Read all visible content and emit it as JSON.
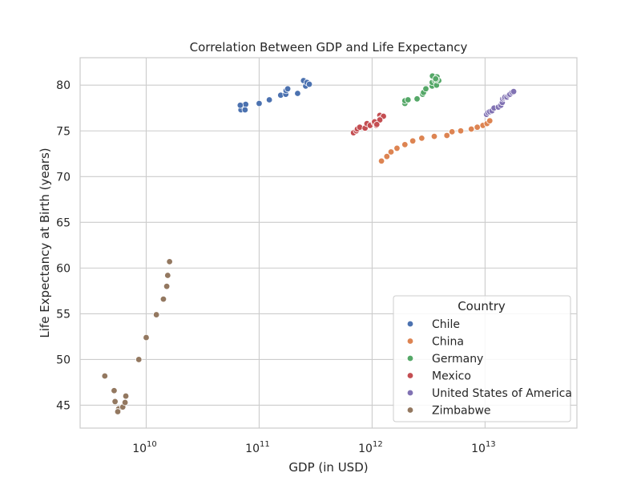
{
  "chart_data": {
    "type": "scatter",
    "title": "Correlation Between GDP and Life Expectancy",
    "xlabel": "GDP (in USD)",
    "ylabel": "Life Expectancy at Birth (years)",
    "x_scale": "log",
    "xlim": [
      2600000000.0,
      65000000000000.0
    ],
    "ylim": [
      42.5,
      83
    ],
    "x_ticks": [
      {
        "value": 10000000000.0,
        "base": "10",
        "exp": "10"
      },
      {
        "value": 100000000000.0,
        "base": "10",
        "exp": "11"
      },
      {
        "value": 1000000000000.0,
        "base": "10",
        "exp": "12"
      },
      {
        "value": 10000000000000.0,
        "base": "10",
        "exp": "13"
      }
    ],
    "y_ticks": [
      45,
      50,
      55,
      60,
      65,
      70,
      75,
      80
    ],
    "grid": true,
    "legend": {
      "title": "Country",
      "placement": "lower-right"
    },
    "series": [
      {
        "name": "Chile",
        "color": "#4c72b0",
        "points": [
          [
            69000000000.0,
            77.3
          ],
          [
            71000000000.0,
            77.8
          ],
          [
            76000000000.0,
            77.9
          ],
          [
            75000000000.0,
            77.3
          ],
          [
            68000000000.0,
            77.8
          ],
          [
            100000000000.0,
            78.0
          ],
          [
            123000000000.0,
            78.4
          ],
          [
            155000000000.0,
            78.9
          ],
          [
            172000000000.0,
            79.0
          ],
          [
            173000000000.0,
            79.4
          ],
          [
            179000000000.0,
            79.6
          ],
          [
            219000000000.0,
            79.1
          ],
          [
            247000000000.0,
            80.5
          ],
          [
            258000000000.0,
            79.9
          ],
          [
            265000000000.0,
            80.3
          ],
          [
            278000000000.0,
            80.1
          ]
        ]
      },
      {
        "name": "China",
        "color": "#dd8452",
        "points": [
          [
            1210000000000.0,
            71.7
          ],
          [
            1350000000000.0,
            72.2
          ],
          [
            1470000000000.0,
            72.7
          ],
          [
            1660000000000.0,
            73.1
          ],
          [
            1950000000000.0,
            73.5
          ],
          [
            2290000000000.0,
            73.9
          ],
          [
            2750000000000.0,
            74.2
          ],
          [
            3550000000000.0,
            74.4
          ],
          [
            4590000000000.0,
            74.5
          ],
          [
            5100000000000.0,
            74.9
          ],
          [
            6090000000000.0,
            75.0
          ],
          [
            7550000000000.0,
            75.2
          ],
          [
            8530000000000.0,
            75.4
          ],
          [
            9570000000000.0,
            75.6
          ],
          [
            10400000000000.0,
            75.8
          ],
          [
            11000000000000.0,
            76.1
          ]
        ]
      },
      {
        "name": "Germany",
        "color": "#55a868",
        "points": [
          [
            1950000000000.0,
            78.0
          ],
          [
            1950000000000.0,
            78.3
          ],
          [
            2080000000000.0,
            78.4
          ],
          [
            2500000000000.0,
            78.5
          ],
          [
            2800000000000.0,
            79.0
          ],
          [
            2850000000000.0,
            79.2
          ],
          [
            2990000000000.0,
            79.6
          ],
          [
            3400000000000.0,
            79.9
          ],
          [
            3400000000000.0,
            80.3
          ],
          [
            3420000000000.0,
            81.0
          ],
          [
            3600000000000.0,
            80.5
          ],
          [
            3720000000000.0,
            80.0
          ],
          [
            3760000000000.0,
            80.9
          ],
          [
            3890000000000.0,
            80.5
          ],
          [
            3700000000000.0,
            80.6
          ],
          [
            3650000000000.0,
            80.7
          ]
        ]
      },
      {
        "name": "Mexico",
        "color": "#c44e52",
        "points": [
          [
            684000000000.0,
            74.8
          ],
          [
            725000000000.0,
            75.0
          ],
          [
            740000000000.0,
            75.2
          ],
          [
            777000000000.0,
            75.4
          ],
          [
            866000000000.0,
            75.3
          ],
          [
            967000000000.0,
            75.7
          ],
          [
            900000000000.0,
            75.8
          ],
          [
            960000000000.0,
            75.6
          ],
          [
            1040000000000.0,
            75.9
          ],
          [
            1090000000000.0,
            75.6
          ],
          [
            1050000000000.0,
            76.0
          ],
          [
            1170000000000.0,
            76.7
          ],
          [
            1180000000000.0,
            76.3
          ],
          [
            1260000000000.0,
            76.6
          ],
          [
            1170000000000.0,
            76.2
          ],
          [
            1100000000000.0,
            75.7
          ]
        ]
      },
      {
        "name": "United States of America",
        "color": "#8172b3",
        "points": [
          [
            10300000000000.0,
            76.8
          ],
          [
            10600000000000.0,
            77.0
          ],
          [
            11000000000000.0,
            77.1
          ],
          [
            11500000000000.0,
            77.2
          ],
          [
            12000000000000.0,
            77.5
          ],
          [
            13100000000000.0,
            77.6
          ],
          [
            13800000000000.0,
            77.8
          ],
          [
            14200000000000.0,
            78.1
          ],
          [
            14300000000000.0,
            78.5
          ],
          [
            14700000000000.0,
            78.6
          ],
          [
            15000000000000.0,
            78.7
          ],
          [
            15600000000000.0,
            78.7
          ],
          [
            16200000000000.0,
            78.9
          ],
          [
            16600000000000.0,
            79.0
          ],
          [
            17300000000000.0,
            79.2
          ],
          [
            17900000000000.0,
            79.3
          ]
        ]
      },
      {
        "name": "Zimbabwe",
        "color": "#937860",
        "points": [
          [
            4300000000.0,
            48.2
          ],
          [
            5200000000.0,
            46.6
          ],
          [
            5300000000.0,
            45.4
          ],
          [
            5700000000.0,
            44.6
          ],
          [
            5600000000.0,
            44.3
          ],
          [
            6200000000.0,
            44.8
          ],
          [
            6600000000.0,
            46.0
          ],
          [
            6500000000.0,
            45.3
          ],
          [
            8600000000.0,
            50.0
          ],
          [
            10000000000.0,
            52.4
          ],
          [
            12300000000.0,
            54.9
          ],
          [
            14200000000.0,
            56.6
          ],
          [
            15200000000.0,
            58.0
          ],
          [
            15500000000.0,
            59.2
          ],
          [
            16100000000.0,
            60.7
          ]
        ]
      }
    ]
  }
}
